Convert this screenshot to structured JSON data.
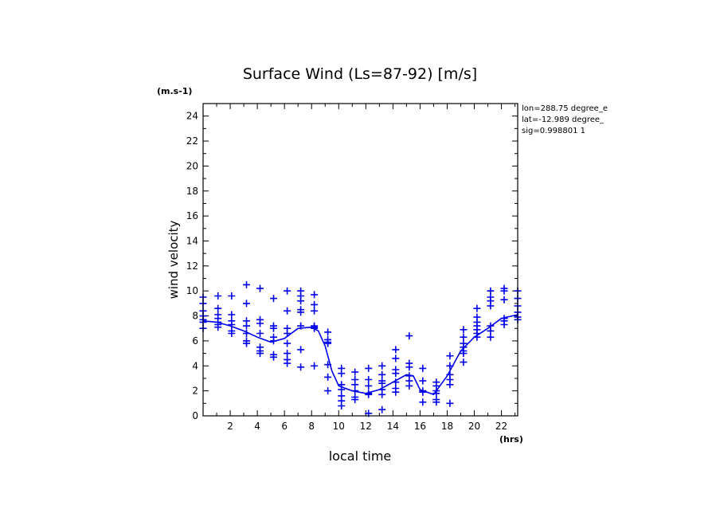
{
  "chart_data": {
    "type": "scatter",
    "title": "Surface Wind  (Ls=87-92) [m/s]",
    "xlabel": "local time",
    "ylabel": "wind velocity",
    "x_unit": "(hrs)",
    "y_unit": "(m.s-1)",
    "xlim": [
      0,
      23.2
    ],
    "ylim": [
      0,
      25
    ],
    "xticks": [
      2,
      4,
      6,
      8,
      10,
      12,
      14,
      16,
      18,
      20,
      22
    ],
    "yticks": [
      0,
      2,
      4,
      6,
      8,
      10,
      12,
      14,
      16,
      18,
      20,
      22,
      24
    ],
    "info": [
      "lon=288.75 degree_e",
      "lat=-12.989 degree_",
      "sig=0.998801 1"
    ],
    "mean_line": {
      "x": [
        0,
        1,
        2,
        3,
        4,
        5,
        6,
        7,
        8,
        8.5,
        9,
        9.5,
        10,
        11,
        12,
        13,
        14,
        15,
        15.5,
        16,
        17,
        18,
        19,
        20,
        21,
        22,
        23.2
      ],
      "y": [
        7.6,
        7.5,
        7.2,
        6.8,
        6.3,
        5.9,
        6.2,
        7.0,
        7.1,
        6.8,
        5.6,
        3.6,
        2.4,
        2.0,
        1.8,
        2.1,
        2.7,
        3.3,
        3.2,
        2.1,
        1.7,
        3.2,
        5.2,
        6.3,
        7.0,
        7.8,
        8.1
      ]
    },
    "points": {
      "x": [
        0,
        0,
        0,
        0,
        0,
        0,
        0,
        1.1,
        1.1,
        1.1,
        1.1,
        1.1,
        1.1,
        1.1,
        2.1,
        2.1,
        2.1,
        2.1,
        2.1,
        2.1,
        3.2,
        3.2,
        3.2,
        3.2,
        3.2,
        3.2,
        3.2,
        4.2,
        4.2,
        4.2,
        4.2,
        4.2,
        4.2,
        4.2,
        5.2,
        5.2,
        5.2,
        5.2,
        5.2,
        5.2,
        5.2,
        6.2,
        6.2,
        6.2,
        6.2,
        6.2,
        6.2,
        6.2,
        6.2,
        7.2,
        7.2,
        7.2,
        7.2,
        7.2,
        7.2,
        7.2,
        7.2,
        8.2,
        8.2,
        8.2,
        8.2,
        8.2,
        8.2,
        8.2,
        9.2,
        9.2,
        9.2,
        9.2,
        9.2,
        9.2,
        9.2,
        10.2,
        10.2,
        10.2,
        10.2,
        10.2,
        10.2,
        10.2,
        11.2,
        11.2,
        11.2,
        11.2,
        11.2,
        11.2,
        12.2,
        12.2,
        12.2,
        12.2,
        12.2,
        12.2,
        13.2,
        13.2,
        13.2,
        13.2,
        13.2,
        13.2,
        13.2,
        14.2,
        14.2,
        14.2,
        14.2,
        14.2,
        14.2,
        14.2,
        15.2,
        15.2,
        15.2,
        15.2,
        15.2,
        15.2,
        16.2,
        16.2,
        16.2,
        16.2,
        16.2,
        17.2,
        17.2,
        17.2,
        17.2,
        17.2,
        17.2,
        18.2,
        18.2,
        18.2,
        18.2,
        18.2,
        18.2,
        19.2,
        19.2,
        19.2,
        19.2,
        19.2,
        19.2,
        19.2,
        20.2,
        20.2,
        20.2,
        20.2,
        20.2,
        20.2,
        20.2,
        21.2,
        21.2,
        21.2,
        21.2,
        21.2,
        21.2,
        21.2,
        22.2,
        22.2,
        22.2,
        22.2,
        22.2,
        22.2,
        23.2,
        23.2,
        23.2,
        23.2,
        23.2,
        23.2
      ],
      "y": [
        9.5,
        9.0,
        8.4,
        8.0,
        7.7,
        7.5,
        7.0,
        9.6,
        8.6,
        8.1,
        7.8,
        7.5,
        7.3,
        7.1,
        9.6,
        8.1,
        7.6,
        7.3,
        6.8,
        6.6,
        10.5,
        9.0,
        7.6,
        7.2,
        6.6,
        6.0,
        5.8,
        10.2,
        7.7,
        7.4,
        6.6,
        5.5,
        5.2,
        5.0,
        9.4,
        7.2,
        7.0,
        6.3,
        6.0,
        4.9,
        4.7,
        10.0,
        8.4,
        7.0,
        6.6,
        5.8,
        5.0,
        4.5,
        4.2,
        10.0,
        9.6,
        9.2,
        8.5,
        8.3,
        7.2,
        5.3,
        3.9,
        9.7,
        8.9,
        8.4,
        7.2,
        7.1,
        7.0,
        4.0,
        6.7,
        6.1,
        5.9,
        5.8,
        4.1,
        3.1,
        2.0,
        3.8,
        3.4,
        2.5,
        2.1,
        1.6,
        1.2,
        0.8,
        3.5,
        2.9,
        2.5,
        2.0,
        1.5,
        1.3,
        3.8,
        2.9,
        2.4,
        1.8,
        1.7,
        0.2,
        4.0,
        3.3,
        2.8,
        2.6,
        2.1,
        1.7,
        0.5,
        5.3,
        4.6,
        3.7,
        3.4,
        2.7,
        2.2,
        1.9,
        6.4,
        4.2,
        3.9,
        3.2,
        2.8,
        2.4,
        3.8,
        2.8,
        2.0,
        1.9,
        1.1,
        2.7,
        2.4,
        2.0,
        1.8,
        1.3,
        1.1,
        4.8,
        4.0,
        3.3,
        2.9,
        2.5,
        1.0,
        6.9,
        6.3,
        5.8,
        5.5,
        5.2,
        5.0,
        4.3,
        8.6,
        7.9,
        7.5,
        7.2,
        6.9,
        6.6,
        6.3,
        10.0,
        9.5,
        9.2,
        8.8,
        7.2,
        6.8,
        6.3,
        10.2,
        10.0,
        9.3,
        7.8,
        7.6,
        7.3,
        10.0,
        9.4,
        8.8,
        8.3,
        7.9,
        7.7
      ]
    }
  },
  "style": {
    "series_color": "#0000ee",
    "axis_color": "#000000"
  }
}
